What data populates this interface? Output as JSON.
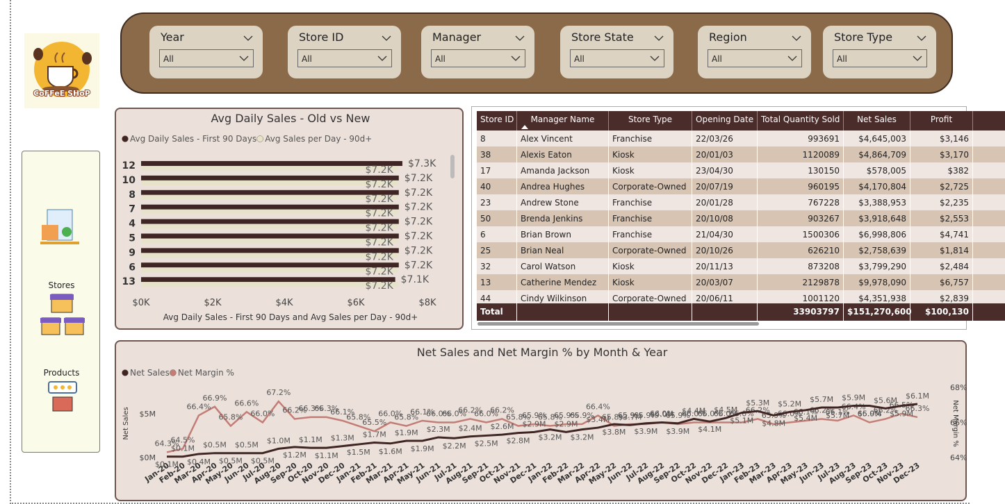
{
  "logo": {
    "text": "CoFFeE SHoP"
  },
  "nav": [
    "Stores",
    "Products"
  ],
  "filters": [
    {
      "label": "Year",
      "value": "All"
    },
    {
      "label": "Store ID",
      "value": "All"
    },
    {
      "label": "Manager",
      "value": "All"
    },
    {
      "label": "Store State",
      "value": "All"
    },
    {
      "label": "Region",
      "value": "All"
    },
    {
      "label": "Store Type",
      "value": "All"
    }
  ],
  "table": {
    "columns": [
      "Store ID",
      "Manager Name",
      "Store Type",
      "Opening Date",
      "Total Quantity Sold",
      "Net Sales",
      "Profit"
    ],
    "rows": [
      [
        "8",
        "Alex Vincent",
        "Franchise",
        "22/03/26",
        "993691",
        "$4,645,003",
        "$3,146"
      ],
      [
        "38",
        "Alexis Eaton",
        "Kiosk",
        "20/01/03",
        "1120089",
        "$4,864,709",
        "$3,170"
      ],
      [
        "17",
        "Amanda Jackson",
        "Kiosk",
        "23/04/30",
        "130150",
        "$578,005",
        "$382"
      ],
      [
        "40",
        "Andrea Hughes",
        "Corporate-Owned",
        "20/07/19",
        "960195",
        "$4,170,804",
        "$2,725"
      ],
      [
        "23",
        "Andrew Stone",
        "Franchise",
        "20/01/28",
        "767228",
        "$3,388,953",
        "$2,235"
      ],
      [
        "50",
        "Brenda Jenkins",
        "Franchise",
        "20/10/08",
        "903267",
        "$3,918,648",
        "$2,553"
      ],
      [
        "6",
        "Brian Brown",
        "Franchise",
        "21/04/30",
        "1500306",
        "$6,998,806",
        "$4,741"
      ],
      [
        "25",
        "Brian Neal",
        "Corporate-Owned",
        "20/10/26",
        "626210",
        "$2,758,639",
        "$1,814"
      ],
      [
        "32",
        "Carol Watson",
        "Kiosk",
        "20/11/13",
        "873208",
        "$3,799,290",
        "$2,484"
      ],
      [
        "13",
        "Catherine Mendez",
        "Kiosk",
        "20/03/07",
        "2129878",
        "$9,978,090",
        "$6,757"
      ],
      [
        "44",
        "Cindy Wilkinson",
        "Corporate-Owned",
        "20/06/11",
        "1001120",
        "$4,351,938",
        "$2,839"
      ]
    ],
    "total": {
      "label": "Total",
      "Total Quantity Sold": "33903797",
      "Net Sales": "$151,270,600",
      "Profit": "$100,130"
    }
  },
  "chart_data": [
    {
      "type": "bar",
      "orientation": "horizontal",
      "title": "Avg Daily Sales - Old vs New",
      "x_label": "Avg Daily Sales - First 90 Days and Avg Sales per Day - 90d+",
      "categories": [
        "12",
        "10",
        "8",
        "7",
        "4",
        "5",
        "9",
        "6",
        "13"
      ],
      "series": [
        {
          "name": "Avg Daily Sales - First 90 Days",
          "color": "#3f2523",
          "values": [
            7300,
            7200,
            7200,
            7200,
            7200,
            7200,
            7200,
            7200,
            7100
          ],
          "value_labels": [
            "$7.3K",
            "$7.2K",
            "$7.2K",
            "$7.2K",
            "$7.2K",
            "$7.2K",
            "$7.2K",
            "$7.2K",
            "$7.1K"
          ]
        },
        {
          "name": "Avg Sales per Day - 90d+",
          "color": "#e7e3cb",
          "values": [
            7200,
            7200,
            7200,
            7200,
            7200,
            7200,
            7200,
            7200,
            7200
          ],
          "value_labels": [
            "$7.2K",
            "$7.2K",
            "$7.2K",
            "$7.2K",
            "$7.2K",
            "$7.2K",
            "$7.2K",
            "$7.2K",
            "$7.2K"
          ]
        }
      ],
      "xlim": [
        0,
        8000
      ],
      "xticks": [
        {
          "value": 0,
          "label": "$0K"
        },
        {
          "value": 2000,
          "label": "$2K"
        },
        {
          "value": 4000,
          "label": "$4K"
        },
        {
          "value": 6000,
          "label": "$6K"
        },
        {
          "value": 8000,
          "label": "$8K"
        }
      ],
      "legend": "top-left"
    },
    {
      "type": "line",
      "title": "Net Sales and Net Margin % by Month & Year",
      "y_label": "Net Sales",
      "y2_label": "Net Margin %",
      "categories": [
        "Jan-20",
        "Feb-20",
        "Mar-20",
        "Apr-20",
        "May-20",
        "Jun-20",
        "Jul-20",
        "Aug-20",
        "Sep-20",
        "Oct-20",
        "Nov-20",
        "Dec-20",
        "Jan-21",
        "Feb-21",
        "Mar-21",
        "Apr-21",
        "May-21",
        "Jun-21",
        "Jul-21",
        "Aug-21",
        "Sep-21",
        "Oct-21",
        "Nov-21",
        "Dec-21",
        "Jan-22",
        "Feb-22",
        "Mar-22",
        "Apr-22",
        "May-22",
        "Jun-22",
        "Jul-22",
        "Aug-22",
        "Sep-22",
        "Oct-22",
        "Nov-22",
        "Dec-22",
        "Jan-23",
        "Feb-23",
        "Mar-23",
        "Apr-23",
        "May-23",
        "Jun-23",
        "Jul-23",
        "Aug-23",
        "Sep-23",
        "Oct-23",
        "Nov-23",
        "Dec-23"
      ],
      "series": [
        {
          "name": "Net Sales",
          "color": "#3f2523",
          "values": [
            100000,
            100000,
            400000,
            500000,
            500000,
            500000,
            500000,
            1000000,
            1200000,
            1100000,
            1100000,
            1300000,
            1500000,
            1700000,
            1600000,
            1900000,
            1900000,
            2300000,
            2200000,
            2400000,
            2500000,
            2600000,
            2800000,
            2900000,
            3200000,
            2900000,
            3200000,
            3400000,
            3800000,
            3700000,
            3900000,
            4000000,
            3900000,
            4400000,
            4100000,
            4500000,
            5100000,
            5300000,
            4800000,
            5200000,
            5400000,
            5700000,
            5700000,
            5900000,
            5900000,
            5600000,
            5900000,
            6100000
          ],
          "value_labels": [
            "$0.1M",
            "$0.1M",
            "$0.4M",
            "$0.5M",
            "$0.5M",
            "$0.5M",
            "$0.5M",
            "$1.0M",
            "$1.2M",
            "$1.1M",
            "$1.1M",
            "$1.3M",
            "$1.5M",
            "$1.7M",
            "$1.6M",
            "$1.9M",
            "$1.9M",
            "$2.3M",
            "$2.2M",
            "$2.4M",
            "$2.5M",
            "$2.6M",
            "$2.8M",
            "$2.9M",
            "$3.2M",
            "$2.9M",
            "$3.2M",
            "$3.4M",
            "$3.8M",
            "$3.7M",
            "$3.9M",
            "$4.0M",
            "$3.9M",
            "$4.4M",
            "$4.1M",
            "$4.5M",
            "$5.1M",
            "$5.3M",
            "$4.8M",
            "$5.2M",
            "$5.4M",
            "$5.7M",
            "$5.7M",
            "$5.9M",
            "$5.9M",
            "$5.6M",
            "$5.9M",
            "$6.1M"
          ]
        },
        {
          "name": "Net Margin %",
          "color": "#c27e76",
          "axis": "y2",
          "values": [
            64.3,
            64.5,
            66.4,
            66.9,
            65.8,
            66.6,
            66.0,
            67.2,
            66.2,
            66.3,
            66.3,
            66.1,
            65.8,
            65.5,
            66.0,
            65.8,
            66.1,
            66.0,
            66.0,
            66.2,
            66.0,
            66.2,
            65.8,
            65.9,
            65.8,
            65.9,
            65.9,
            66.4,
            65.8,
            65.9,
            65.9,
            66.0,
            65.9,
            66.0,
            66.0,
            66.0,
            66.0,
            66.2,
            65.9,
            66.0,
            66.1,
            66.2,
            66.1,
            66.4,
            66.0,
            66.2,
            66.5,
            66.3
          ],
          "value_labels": [
            "64.3%",
            "64.5%",
            "66.4%",
            "66.9%",
            "65.8%",
            "66.6%",
            "66.0%",
            "67.2%",
            "66.2%",
            "66.3%",
            "66.3%",
            "66.1%",
            "65.8%",
            "65.5%",
            "66.0%",
            "65.8%",
            "66.1%",
            "66.0%",
            "66.0%",
            "66.2%",
            "66.0%",
            "66.2%",
            "65.8%",
            "65.9%",
            "65.8%",
            "65.9%",
            "65.9%",
            "66.4%",
            "65.8%",
            "65.9%",
            "65.9%",
            "66.0%",
            "65.9%",
            "66.0%",
            "66.0%",
            "66.0%",
            "66.0%",
            "66.2%",
            "65.9%",
            "66.0%",
            "66.1%",
            "66.2%",
            "66.1%",
            "66.4%",
            "66.0%",
            "66.2%",
            "66.5%",
            "66.3%"
          ]
        }
      ],
      "ylim": [
        0,
        8000000
      ],
      "yticks": [
        {
          "value": 0,
          "label": "$0M"
        },
        {
          "value": 5000000,
          "label": "$5M"
        }
      ],
      "y2lim": [
        64,
        68
      ],
      "y2ticks": [
        {
          "value": 64,
          "label": "64%"
        },
        {
          "value": 66,
          "label": "66%"
        },
        {
          "value": 68,
          "label": "68%"
        }
      ],
      "legend": "top-left"
    }
  ]
}
